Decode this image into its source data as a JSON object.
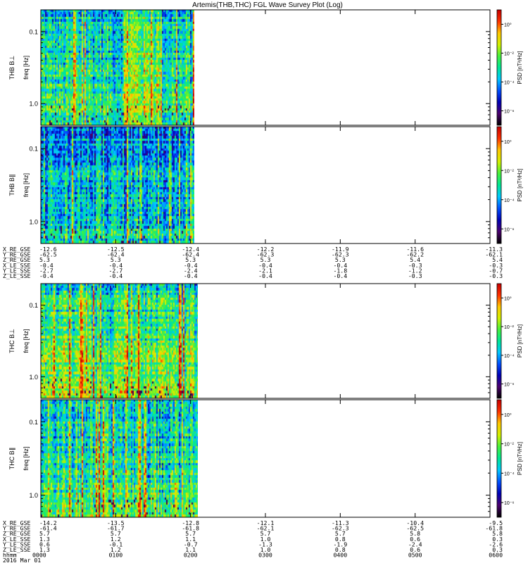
{
  "title": "Artemis(THB,THC) FGL Wave Survey Plot (Log)",
  "colorbar_label": "PSD [nT²/Hz]",
  "colorbar_ticks": [
    "10⁰",
    "10⁻²",
    "10⁻⁴",
    "10⁻⁶"
  ],
  "freq_axis_label": "freq [Hz]",
  "freq_ticks": [
    "1.0",
    "0.1"
  ],
  "colormap": [
    "#000000",
    "#4b006e",
    "#0000b4",
    "#0050ff",
    "#00c8ff",
    "#00e696",
    "#46f03c",
    "#d2f000",
    "#ffc800",
    "#ff3200",
    "#c80000"
  ],
  "chart_data": [
    {
      "type": "heatmap",
      "probe": "THB",
      "panel_label": "THB B⊥",
      "ylabel": "freq [Hz]",
      "yscale": "log",
      "ylim": [
        0.05,
        2.0
      ],
      "y_ticks": [
        0.1,
        1.0
      ],
      "xlim_hours": [
        0,
        6
      ],
      "data_extent_hours": [
        0,
        2.05
      ],
      "zlabel": "PSD [nT²/Hz]",
      "zlim_log10": [
        -7,
        1
      ],
      "bright_band_hours": [
        1.1,
        1.6
      ]
    },
    {
      "type": "heatmap",
      "probe": "THB",
      "panel_label": "THB B∥",
      "ylabel": "freq [Hz]",
      "yscale": "log",
      "ylim": [
        0.05,
        2.0
      ],
      "y_ticks": [
        0.1,
        1.0
      ],
      "xlim_hours": [
        0,
        6
      ],
      "data_extent_hours": [
        0,
        2.05
      ],
      "zlabel": "PSD [nT²/Hz]",
      "zlim_log10": [
        -7,
        1
      ]
    },
    {
      "type": "heatmap",
      "probe": "THC",
      "panel_label": "THC B⊥",
      "ylabel": "freq [Hz]",
      "yscale": "log",
      "ylim": [
        0.05,
        2.0
      ],
      "y_ticks": [
        0.1,
        1.0
      ],
      "xlim_hours": [
        0,
        6
      ],
      "data_extent_hours": [
        0,
        2.1
      ],
      "zlabel": "PSD [nT²/Hz]",
      "zlim_log10": [
        -7,
        1
      ]
    },
    {
      "type": "heatmap",
      "probe": "THC",
      "panel_label": "THC B∥",
      "ylabel": "freq [Hz]",
      "yscale": "log",
      "ylim": [
        0.05,
        2.0
      ],
      "y_ticks": [
        0.1,
        1.0
      ],
      "xlim_hours": [
        0,
        6
      ],
      "data_extent_hours": [
        0,
        2.1
      ],
      "zlabel": "PSD [nT²/Hz]",
      "zlim_log10": [
        -7,
        1
      ]
    }
  ],
  "ephemeris_thb": {
    "rows": [
      {
        "label": "X_RE_GSE",
        "values": [
          "-12.6",
          "-12.5",
          "-12.4",
          "-12.2",
          "-11.9",
          "-11.6",
          "-11.3"
        ]
      },
      {
        "label": "Y_RE_GSE",
        "values": [
          "-62.5",
          "-62.4",
          "-62.4",
          "-62.3",
          "-62.3",
          "-62.2",
          "-62.1"
        ]
      },
      {
        "label": "Z_RE_GSE",
        "values": [
          "5.3",
          "5.3",
          "5.3",
          "5.3",
          "5.3",
          "5.4",
          "5.4"
        ]
      },
      {
        "label": "X_LE_SSE",
        "values": [
          "-0.4",
          "-0.4",
          "-0.4",
          "-0.4",
          "-0.4",
          "-0.3",
          "-0.3"
        ]
      },
      {
        "label": "Y_LE_SSE",
        "values": [
          "-2.7",
          "-2.7",
          "-2.4",
          "-2.1",
          "-1.8",
          "-1.2",
          "-0.7"
        ]
      },
      {
        "label": "Z_LE_SSE",
        "values": [
          "-0.4",
          "-0.4",
          "-0.4",
          "-0.4",
          "-0.4",
          "-0.3",
          "-0.3"
        ]
      }
    ]
  },
  "ephemeris_thc": {
    "rows": [
      {
        "label": "X_RE_GSE",
        "values": [
          "-14.2",
          "-13.5",
          "-12.8",
          "-12.1",
          "-11.3",
          "-10.4",
          "-9.5"
        ]
      },
      {
        "label": "Y_RE_GSE",
        "values": [
          "-61.4",
          "-61.7",
          "-61.8",
          "-62.1",
          "-62.3",
          "-62.5",
          "-61.8"
        ]
      },
      {
        "label": "Z_RE_GSE",
        "values": [
          "5.7",
          "5.7",
          "5.7",
          "5.7",
          "5.7",
          "5.8",
          "5.8"
        ]
      },
      {
        "label": "X_LE_SSE",
        "values": [
          "1.3",
          "1.2",
          "1.1",
          "1.0",
          "0.8",
          "0.6",
          "0.3"
        ]
      },
      {
        "label": "Y_LE_SSE",
        "values": [
          "0.6",
          "-0.1",
          "-0.7",
          "-1.3",
          "-1.9",
          "-2.4",
          "-2.6"
        ]
      },
      {
        "label": "Z_LE_SSE",
        "values": [
          "1.3",
          "1.2",
          "1.1",
          "1.0",
          "0.8",
          "0.6",
          "0.3"
        ]
      }
    ],
    "time_label": "hhmm",
    "time_ticks": [
      "0000",
      "0100",
      "0200",
      "0300",
      "0400",
      "0500",
      "0600"
    ],
    "date_label": "2016 Mar 01"
  }
}
